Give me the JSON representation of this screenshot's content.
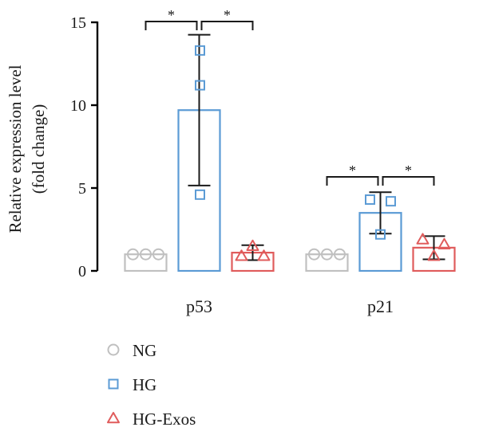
{
  "chart_data": {
    "type": "bar",
    "categories": [
      "p53",
      "p21"
    ],
    "ylabel_lines": [
      "Relative expression level",
      "(fold change)"
    ],
    "ylim": [
      0,
      15
    ],
    "yticks": [
      0,
      5,
      10,
      15
    ],
    "grid": false,
    "legend_position": "bottom-left",
    "series": [
      {
        "name": "NG",
        "marker": "circle",
        "color": "#c0c0c0",
        "values": [
          1.0,
          1.0
        ],
        "errors": [
          0,
          0
        ],
        "points": [
          [
            1.0,
            1.0,
            1.0
          ],
          [
            1.0,
            1.0,
            1.0
          ]
        ]
      },
      {
        "name": "HG",
        "marker": "square",
        "color": "#5b9bd5",
        "values": [
          9.7,
          3.5
        ],
        "errors": [
          4.55,
          1.25
        ],
        "points": [
          [
            13.3,
            11.2,
            4.6
          ],
          [
            4.3,
            4.2,
            2.2
          ]
        ]
      },
      {
        "name": "HG-Exos",
        "marker": "triangle",
        "color": "#e05c5c",
        "values": [
          1.1,
          1.4
        ],
        "errors": [
          0.45,
          0.7
        ],
        "points": [
          [
            1.5,
            0.9,
            0.9
          ],
          [
            1.9,
            1.6,
            0.9
          ]
        ]
      }
    ],
    "significance": [
      {
        "category": "p53",
        "pair": [
          "NG",
          "HG"
        ],
        "label": "*"
      },
      {
        "category": "p53",
        "pair": [
          "HG",
          "HG-Exos"
        ],
        "label": "*"
      },
      {
        "category": "p21",
        "pair": [
          "NG",
          "HG"
        ],
        "label": "*"
      },
      {
        "category": "p21",
        "pair": [
          "HG",
          "HG-Exos"
        ],
        "label": "*"
      }
    ]
  }
}
